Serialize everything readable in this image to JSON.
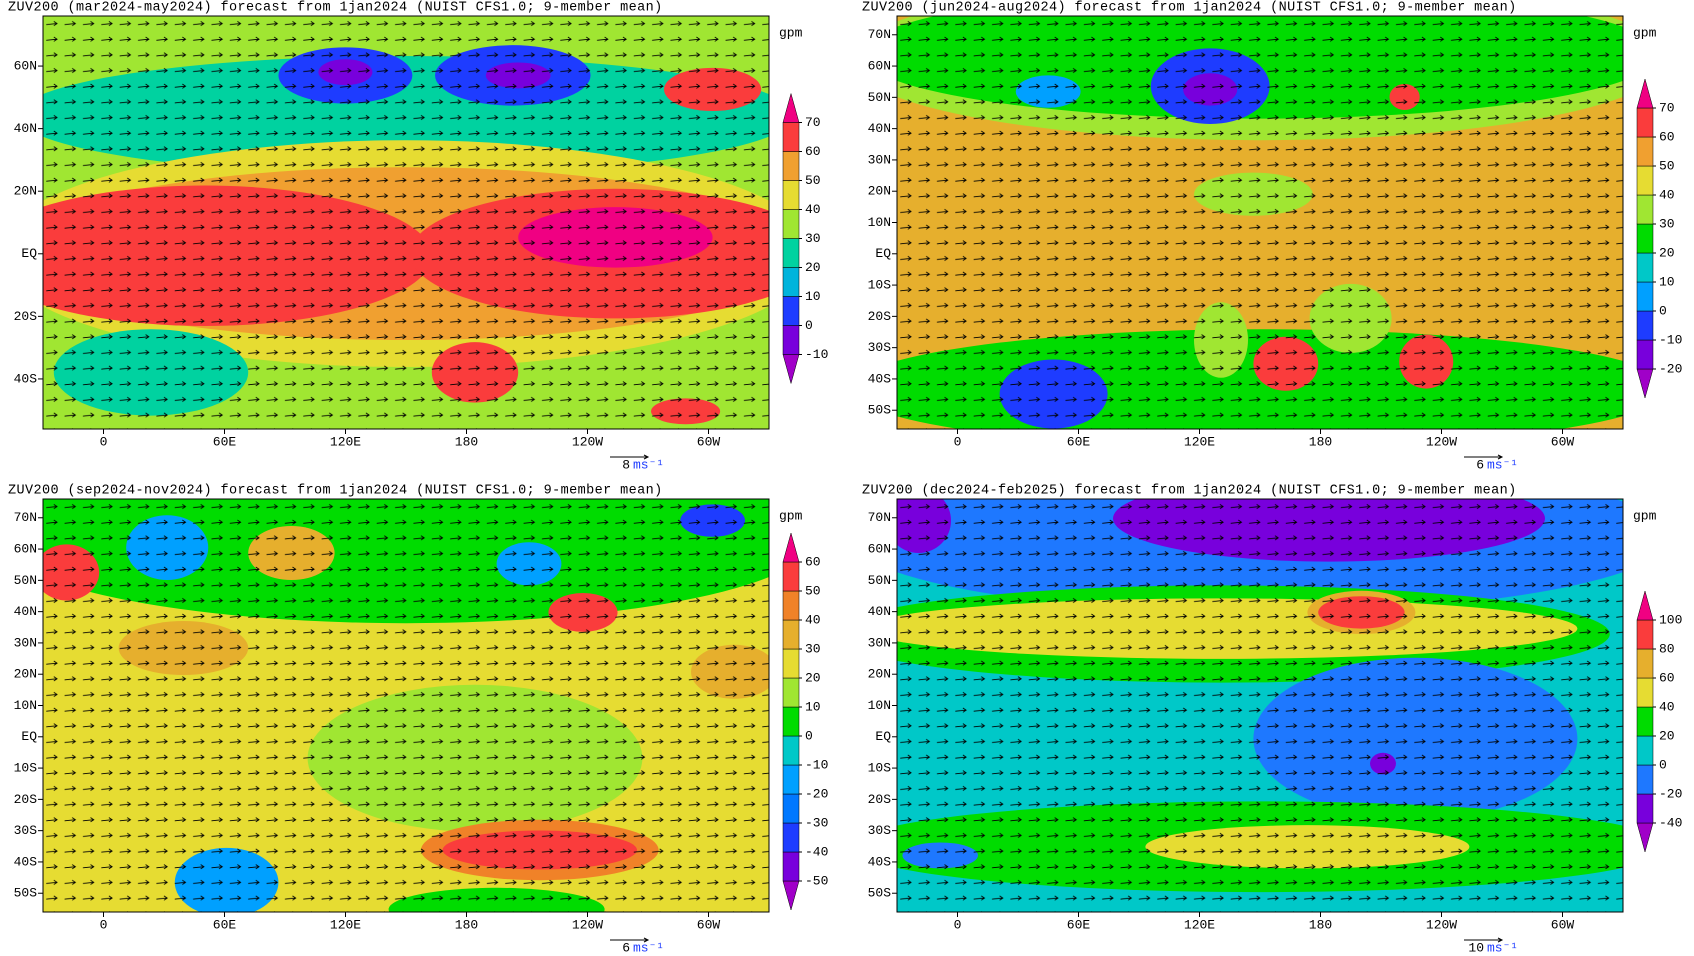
{
  "panels": [
    {
      "title": "ZUV200 (mar2024-may2024) forecast from 1jan2024 (NUIST CFS1.0; 9-member mean)",
      "xlim": [
        -30,
        330
      ],
      "ylim": [
        -56,
        76
      ],
      "xticks": [
        0,
        {
          "value": 60,
          "label": "60E"
        },
        {
          "value": 120,
          "label": "120E"
        },
        180,
        {
          "value": 240,
          "label": "120W"
        },
        {
          "value": 300,
          "label": "60W"
        }
      ],
      "yticks": [
        {
          "value": -40,
          "label": "40S"
        },
        {
          "value": -20,
          "label": "20S"
        },
        {
          "value": 0,
          "label": "EQ"
        },
        {
          "value": 20,
          "label": "20N"
        },
        {
          "value": 40,
          "label": "40N"
        },
        {
          "value": 60,
          "label": "60N"
        }
      ],
      "colorbar": {
        "unit": "gpm",
        "ticks": [
          -10,
          0,
          10,
          20,
          30,
          40,
          50,
          60,
          70
        ],
        "colors": [
          "#a000c8",
          "#7800dc",
          "#1e3cff",
          "#00b4dc",
          "#00d2a0",
          "#a0e632",
          "#e6dc32",
          "#f0a030",
          "#fa3c3c",
          "#f00082"
        ]
      },
      "vector_scale": {
        "value": 8,
        "unit": "ms⁻¹"
      }
    },
    {
      "title": "ZUV200 (jun2024-aug2024) forecast from 1jan2024 (NUIST CFS1.0; 9-member mean)",
      "xlim": [
        -30,
        330
      ],
      "ylim": [
        -56,
        76
      ],
      "xticks": [
        0,
        {
          "value": 60,
          "label": "60E"
        },
        {
          "value": 120,
          "label": "120E"
        },
        180,
        {
          "value": 240,
          "label": "120W"
        },
        {
          "value": 300,
          "label": "60W"
        }
      ],
      "yticks": [
        {
          "value": -50,
          "label": "50S"
        },
        {
          "value": -40,
          "label": "40S"
        },
        {
          "value": -30,
          "label": "30S"
        },
        {
          "value": -20,
          "label": "20S"
        },
        {
          "value": -10,
          "label": "10S"
        },
        {
          "value": 0,
          "label": "EQ"
        },
        {
          "value": 10,
          "label": "10N"
        },
        {
          "value": 20,
          "label": "20N"
        },
        {
          "value": 30,
          "label": "30N"
        },
        {
          "value": 40,
          "label": "40N"
        },
        {
          "value": 50,
          "label": "50N"
        },
        {
          "value": 60,
          "label": "60N"
        },
        {
          "value": 70,
          "label": "70N"
        }
      ],
      "colorbar": {
        "unit": "gpm",
        "ticks": [
          -20,
          -10,
          0,
          10,
          20,
          30,
          40,
          50,
          60,
          70
        ],
        "colors": [
          "#a000c8",
          "#7800dc",
          "#1e3cff",
          "#00a0ff",
          "#00c8c8",
          "#00dc00",
          "#a0e632",
          "#e6dc32",
          "#f0a030",
          "#fa3c3c",
          "#f00082"
        ]
      },
      "vector_scale": {
        "value": 6,
        "unit": "ms⁻¹"
      }
    },
    {
      "title": "ZUV200 (sep2024-nov2024) forecast from 1jan2024 (NUIST CFS1.0; 9-member mean)",
      "xlim": [
        -30,
        330
      ],
      "ylim": [
        -56,
        76
      ],
      "xticks": [
        0,
        {
          "value": 60,
          "label": "60E"
        },
        {
          "value": 120,
          "label": "120E"
        },
        180,
        {
          "value": 240,
          "label": "120W"
        },
        {
          "value": 300,
          "label": "60W"
        }
      ],
      "yticks": [
        {
          "value": -50,
          "label": "50S"
        },
        {
          "value": -40,
          "label": "40S"
        },
        {
          "value": -30,
          "label": "30S"
        },
        {
          "value": -20,
          "label": "20S"
        },
        {
          "value": -10,
          "label": "10S"
        },
        {
          "value": 0,
          "label": "EQ"
        },
        {
          "value": 10,
          "label": "10N"
        },
        {
          "value": 20,
          "label": "20N"
        },
        {
          "value": 30,
          "label": "30N"
        },
        {
          "value": 40,
          "label": "40N"
        },
        {
          "value": 50,
          "label": "50N"
        },
        {
          "value": 60,
          "label": "60N"
        },
        {
          "value": 70,
          "label": "70N"
        }
      ],
      "colorbar": {
        "unit": "gpm",
        "ticks": [
          -50,
          -40,
          -30,
          -20,
          -10,
          0,
          10,
          20,
          30,
          40,
          50,
          60
        ],
        "colors": [
          "#a000c8",
          "#7800dc",
          "#1e3cff",
          "#0078ff",
          "#00a0ff",
          "#00c8c8",
          "#00dc00",
          "#a0e632",
          "#e6dc32",
          "#e6af2d",
          "#f08228",
          "#fa3c3c",
          "#f00082"
        ]
      },
      "vector_scale": {
        "value": 6,
        "unit": "ms⁻¹"
      }
    },
    {
      "title": "ZUV200 (dec2024-feb2025) forecast from 1jan2024 (NUIST CFS1.0; 9-member mean)",
      "xlim": [
        -30,
        330
      ],
      "ylim": [
        -56,
        76
      ],
      "xticks": [
        0,
        {
          "value": 60,
          "label": "60E"
        },
        {
          "value": 120,
          "label": "120E"
        },
        180,
        {
          "value": 240,
          "label": "120W"
        },
        {
          "value": 300,
          "label": "60W"
        }
      ],
      "yticks": [
        {
          "value": -50,
          "label": "50S"
        },
        {
          "value": -40,
          "label": "40S"
        },
        {
          "value": -30,
          "label": "30S"
        },
        {
          "value": -20,
          "label": "20S"
        },
        {
          "value": -10,
          "label": "10S"
        },
        {
          "value": 0,
          "label": "EQ"
        },
        {
          "value": 10,
          "label": "10N"
        },
        {
          "value": 20,
          "label": "20N"
        },
        {
          "value": 30,
          "label": "30N"
        },
        {
          "value": 40,
          "label": "40N"
        },
        {
          "value": 50,
          "label": "50N"
        },
        {
          "value": 60,
          "label": "60N"
        },
        {
          "value": 70,
          "label": "70N"
        }
      ],
      "colorbar": {
        "unit": "gpm",
        "ticks": [
          -40,
          -20,
          0,
          20,
          40,
          60,
          80,
          100
        ],
        "colors": [
          "#a000c8",
          "#7800dc",
          "#1e78ff",
          "#00c8c8",
          "#00dc00",
          "#e6dc32",
          "#e6af2d",
          "#fa3c3c",
          "#f00082"
        ]
      },
      "vector_scale": {
        "value": 10,
        "unit": "ms⁻¹"
      }
    }
  ]
}
